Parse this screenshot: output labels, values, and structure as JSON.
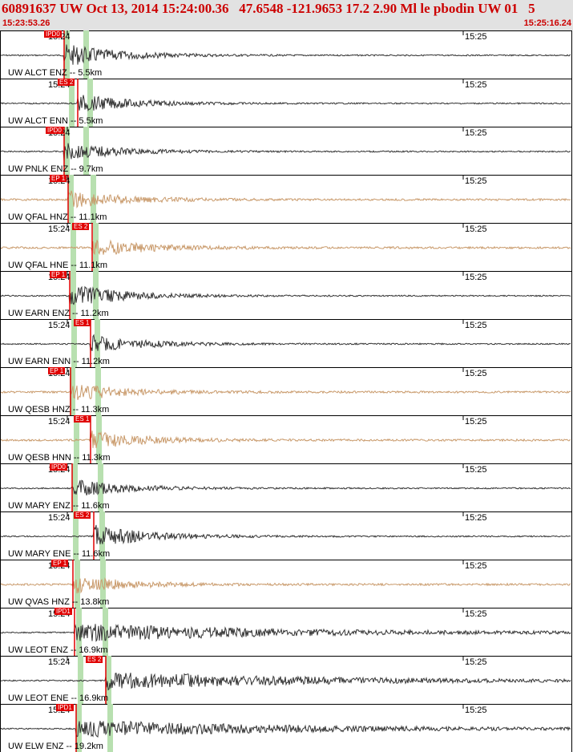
{
  "header": {
    "title": "60891637 UW Oct 13, 2014 15:24:00.36   47.6548 -121.9653 17.2 2.90 Ml le pbodin UW 01   5",
    "start_time": "15:23:53.26",
    "end_time": "15:25:16.24"
  },
  "colors": {
    "header_bg": "#e2e2e2",
    "title": "#cc0000",
    "pick": "#e00000",
    "highlight": "#b8e0b0",
    "trace_dark": "#333333",
    "trace_accel": "#c99a6b"
  },
  "traces": [
    {
      "tick_left": "15:24",
      "tick_right": "15:25",
      "channel": "UW ALCT ENZ -- 5.5km",
      "pick": "IPD0",
      "type": "dark"
    },
    {
      "tick_left": "15:24",
      "tick_right": "15:25",
      "channel": "UW ALCT ENN -- 5.5km",
      "pick": "ES 2",
      "type": "dark"
    },
    {
      "tick_left": "15:24",
      "tick_right": "15:25",
      "channel": "UW PNLK ENZ -- 9.7km",
      "pick": "IPD0",
      "type": "dark"
    },
    {
      "tick_left": "15:24",
      "tick_right": "15:25",
      "channel": "UW QFAL HNZ -- 11.1km",
      "pick": "EP 1",
      "type": "accel"
    },
    {
      "tick_left": "15:24",
      "tick_right": "15:25",
      "channel": "UW QFAL HNE -- 11.1km",
      "pick": "ES 2",
      "type": "accel"
    },
    {
      "tick_left": "15:24",
      "tick_right": "15:25",
      "channel": "UW EARN ENZ -- 11.2km",
      "pick": "EP 1",
      "type": "dark"
    },
    {
      "tick_left": "15:24",
      "tick_right": "15:25",
      "channel": "UW EARN ENN -- 11.2km",
      "pick": "ES 1",
      "type": "dark"
    },
    {
      "tick_left": "15:24",
      "tick_right": "15:25",
      "channel": "UW QESB HNZ -- 11.3km",
      "pick": "EP 1",
      "type": "accel"
    },
    {
      "tick_left": "15:24",
      "tick_right": "15:25",
      "channel": "UW QESB HNN -- 11.3km",
      "pick": "ES 1",
      "type": "accel"
    },
    {
      "tick_left": "15:24",
      "tick_right": "15:25",
      "channel": "UW MARY ENZ -- 11.6km",
      "pick": "IPD0",
      "type": "dark"
    },
    {
      "tick_left": "15:24",
      "tick_right": "15:25",
      "channel": "UW MARY ENE -- 11.6km",
      "pick": "ES 2",
      "type": "dark"
    },
    {
      "tick_left": "15:24",
      "tick_right": "15:25",
      "channel": "UW QVAS HNZ -- 13.8km",
      "pick": "EP 1",
      "type": "accel"
    },
    {
      "tick_left": "15:24",
      "tick_right": "15:25",
      "channel": "UW LEOT ENZ -- 16.9km",
      "pick": "IPD1",
      "type": "dark"
    },
    {
      "tick_left": "15:24",
      "tick_right": "15:25",
      "channel": "UW LEOT ENE -- 16.9km",
      "pick": "ES 2",
      "type": "dark"
    },
    {
      "tick_left": "15:24",
      "tick_right": "15:25",
      "channel": "UW ELW ENZ -- 19.2km",
      "pick": "IPD1",
      "type": "dark"
    }
  ]
}
